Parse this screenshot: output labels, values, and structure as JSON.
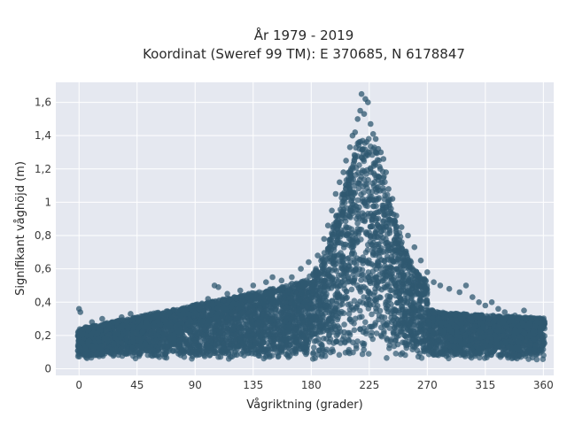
{
  "chart_data": {
    "type": "scatter",
    "title": "År 1979 - 2019",
    "subtitle": "Koordinat (Sweref 99 TM): E 370685, N 6178847",
    "xlabel": "Vågriktning (grader)",
    "ylabel": "Signifikant våghöjd (m)",
    "xlim": [
      -18,
      368
    ],
    "ylim": [
      -0.04,
      1.72
    ],
    "x_ticks": [
      0,
      45,
      90,
      135,
      180,
      225,
      270,
      315,
      360
    ],
    "x_tick_labels": [
      "0",
      "45",
      "90",
      "135",
      "180",
      "225",
      "270",
      "315",
      "360"
    ],
    "y_ticks": [
      0,
      0.2,
      0.4,
      0.6,
      0.8,
      1.0,
      1.2,
      1.4,
      1.6
    ],
    "y_tick_labels": [
      "0",
      "0,2",
      "0,4",
      "0,6",
      "0,8",
      "1",
      "1,2",
      "1,4",
      "1,6"
    ],
    "grid": true,
    "marker_color": "#2f5870",
    "background_color": "#e5e8f0",
    "points": [
      [
        0,
        0.36
      ],
      [
        1,
        0.34
      ],
      [
        5,
        0.25
      ],
      [
        10,
        0.28
      ],
      [
        18,
        0.3
      ],
      [
        27,
        0.28
      ],
      [
        33,
        0.31
      ],
      [
        40,
        0.33
      ],
      [
        52,
        0.3
      ],
      [
        60,
        0.32
      ],
      [
        70,
        0.34
      ],
      [
        80,
        0.36
      ],
      [
        88,
        0.38
      ],
      [
        100,
        0.42
      ],
      [
        105,
        0.5
      ],
      [
        108,
        0.49
      ],
      [
        115,
        0.45
      ],
      [
        125,
        0.47
      ],
      [
        135,
        0.5
      ],
      [
        145,
        0.52
      ],
      [
        150,
        0.55
      ],
      [
        157,
        0.53
      ],
      [
        165,
        0.55
      ],
      [
        172,
        0.6
      ],
      [
        178,
        0.64
      ],
      [
        185,
        0.68
      ],
      [
        190,
        0.78
      ],
      [
        193,
        0.86
      ],
      [
        196,
        0.95
      ],
      [
        199,
        1.05
      ],
      [
        202,
        1.12
      ],
      [
        205,
        1.18
      ],
      [
        207,
        1.25
      ],
      [
        210,
        1.33
      ],
      [
        212,
        1.4
      ],
      [
        214,
        1.42
      ],
      [
        216,
        1.5
      ],
      [
        218,
        1.55
      ],
      [
        219,
        1.65
      ],
      [
        221,
        1.53
      ],
      [
        222,
        1.62
      ],
      [
        224,
        1.6
      ],
      [
        226,
        1.47
      ],
      [
        228,
        1.41
      ],
      [
        230,
        1.38
      ],
      [
        232,
        1.32
      ],
      [
        234,
        1.3
      ],
      [
        236,
        1.26
      ],
      [
        238,
        1.18
      ],
      [
        240,
        1.08
      ],
      [
        243,
        1.02
      ],
      [
        246,
        0.92
      ],
      [
        250,
        0.85
      ],
      [
        255,
        0.8
      ],
      [
        260,
        0.73
      ],
      [
        265,
        0.65
      ],
      [
        270,
        0.58
      ],
      [
        275,
        0.52
      ],
      [
        280,
        0.5
      ],
      [
        287,
        0.48
      ],
      [
        295,
        0.46
      ],
      [
        300,
        0.5
      ],
      [
        305,
        0.43
      ],
      [
        310,
        0.4
      ],
      [
        315,
        0.38
      ],
      [
        320,
        0.4
      ],
      [
        325,
        0.36
      ],
      [
        330,
        0.34
      ],
      [
        338,
        0.32
      ],
      [
        345,
        0.35
      ],
      [
        350,
        0.3
      ],
      [
        355,
        0.28
      ],
      [
        358,
        0.27
      ],
      [
        360,
        0.25
      ]
    ]
  }
}
